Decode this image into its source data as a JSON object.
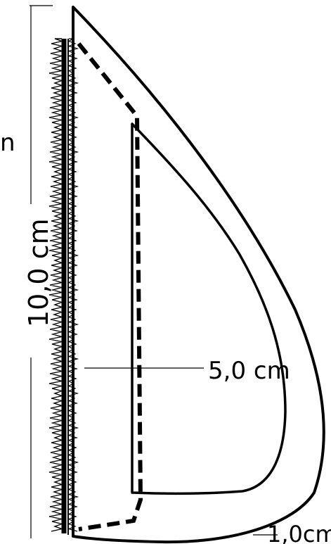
{
  "labels": {
    "height": "10,0 cm",
    "width": "5,0 cm",
    "thickness": "1,0cm",
    "left_partial": "n"
  },
  "colors": {
    "line": "#000000",
    "background": "#ffffff",
    "guide": "#000000"
  }
}
